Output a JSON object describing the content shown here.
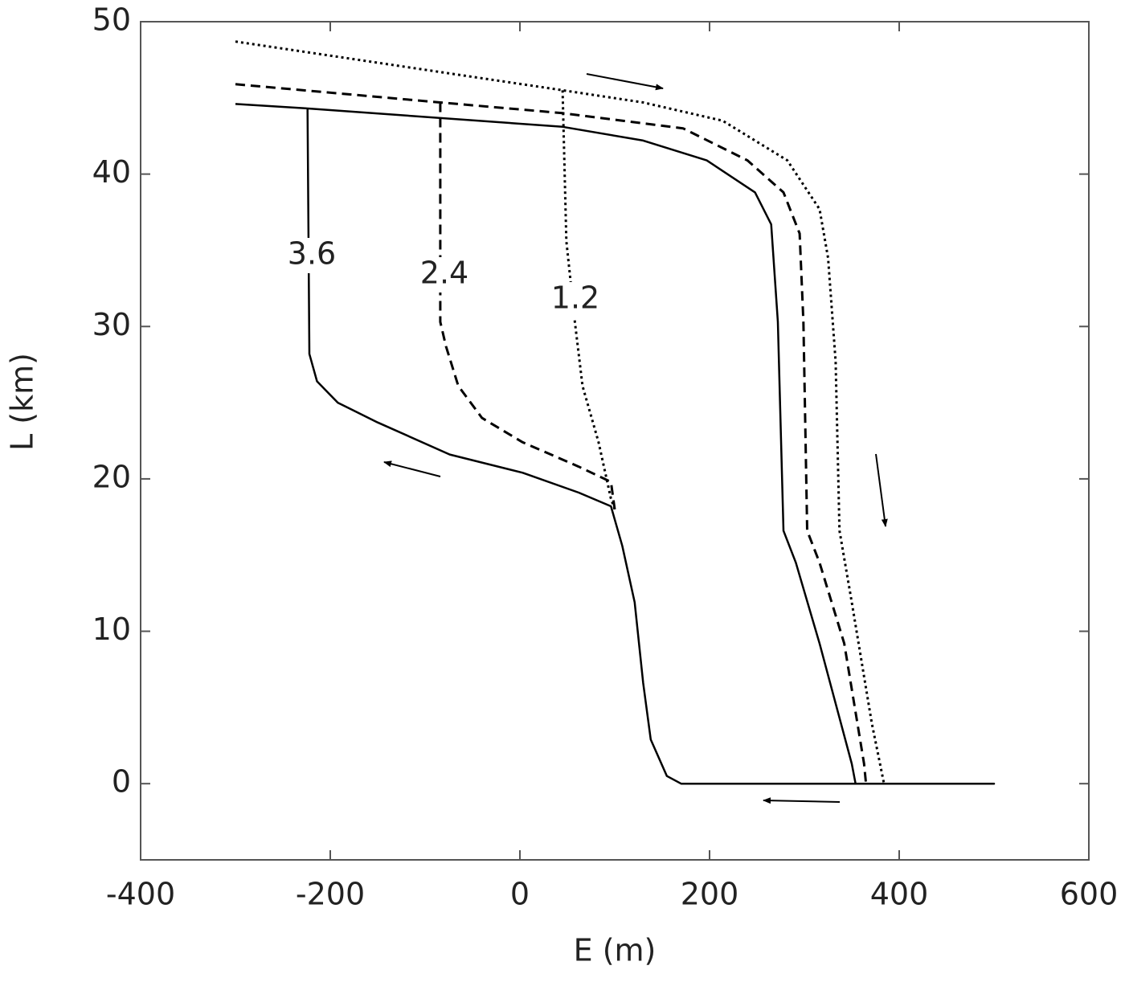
{
  "chart_data": {
    "type": "line",
    "x_label": "E (m)",
    "y_label": "L (km)",
    "xlim": [
      -400,
      600
    ],
    "xticks": [
      -400,
      -200,
      0,
      200,
      400,
      600
    ],
    "ylim": [
      -5,
      50
    ],
    "yticks": [
      0,
      10,
      20,
      30,
      40,
      50
    ],
    "series": [
      {
        "name": "3.6",
        "color": "#000000",
        "dash": "solid",
        "x": [
          -300,
          -222,
          45,
          130,
          197,
          248,
          265,
          272,
          278,
          291,
          316,
          350,
          354,
          500,
          170,
          155,
          138,
          130,
          121,
          108,
          96,
          62,
          3,
          -74,
          -150,
          -192,
          -214,
          -222,
          -224
        ],
        "values": [
          44.6,
          44.3,
          43.1,
          42.2,
          40.9,
          38.8,
          36.7,
          30.3,
          16.6,
          14.5,
          9.2,
          1.3,
          0,
          0,
          0,
          0.5,
          2.9,
          6.6,
          11.9,
          15.6,
          18.2,
          19.1,
          20.4,
          21.6,
          23.7,
          25,
          26.4,
          28.2,
          44.3
        ]
      },
      {
        "name": "2.4",
        "color": "#000000",
        "dash": "dashed",
        "x": [
          -300,
          -84,
          45,
          172,
          240,
          278,
          295,
          299,
          303,
          316,
          342,
          363,
          365,
          null,
          -84,
          -84,
          -78,
          -65,
          -40,
          3,
          62,
          96,
          100
        ],
        "values": [
          45.9,
          44.7,
          44,
          43,
          40.9,
          38.8,
          36.1,
          30.3,
          16.6,
          14.5,
          9.2,
          1.3,
          0,
          null,
          44.7,
          30.3,
          28.7,
          26.1,
          24,
          22.4,
          20.8,
          19.8,
          18
        ]
      },
      {
        "name": "1.2",
        "color": "#000000",
        "dash": "dotted",
        "x": [
          -300,
          45,
          130,
          214,
          282,
          316,
          325,
          333,
          337,
          350,
          371,
          384,
          null,
          45,
          49,
          58,
          66,
          83,
          96,
          100
        ],
        "values": [
          48.7,
          45.5,
          44.7,
          43.5,
          40.9,
          37.7,
          34.5,
          27.7,
          16.6,
          11.9,
          4,
          0,
          null,
          45.5,
          35.6,
          30.3,
          26.1,
          22.4,
          18.7,
          18
        ]
      }
    ]
  }
}
